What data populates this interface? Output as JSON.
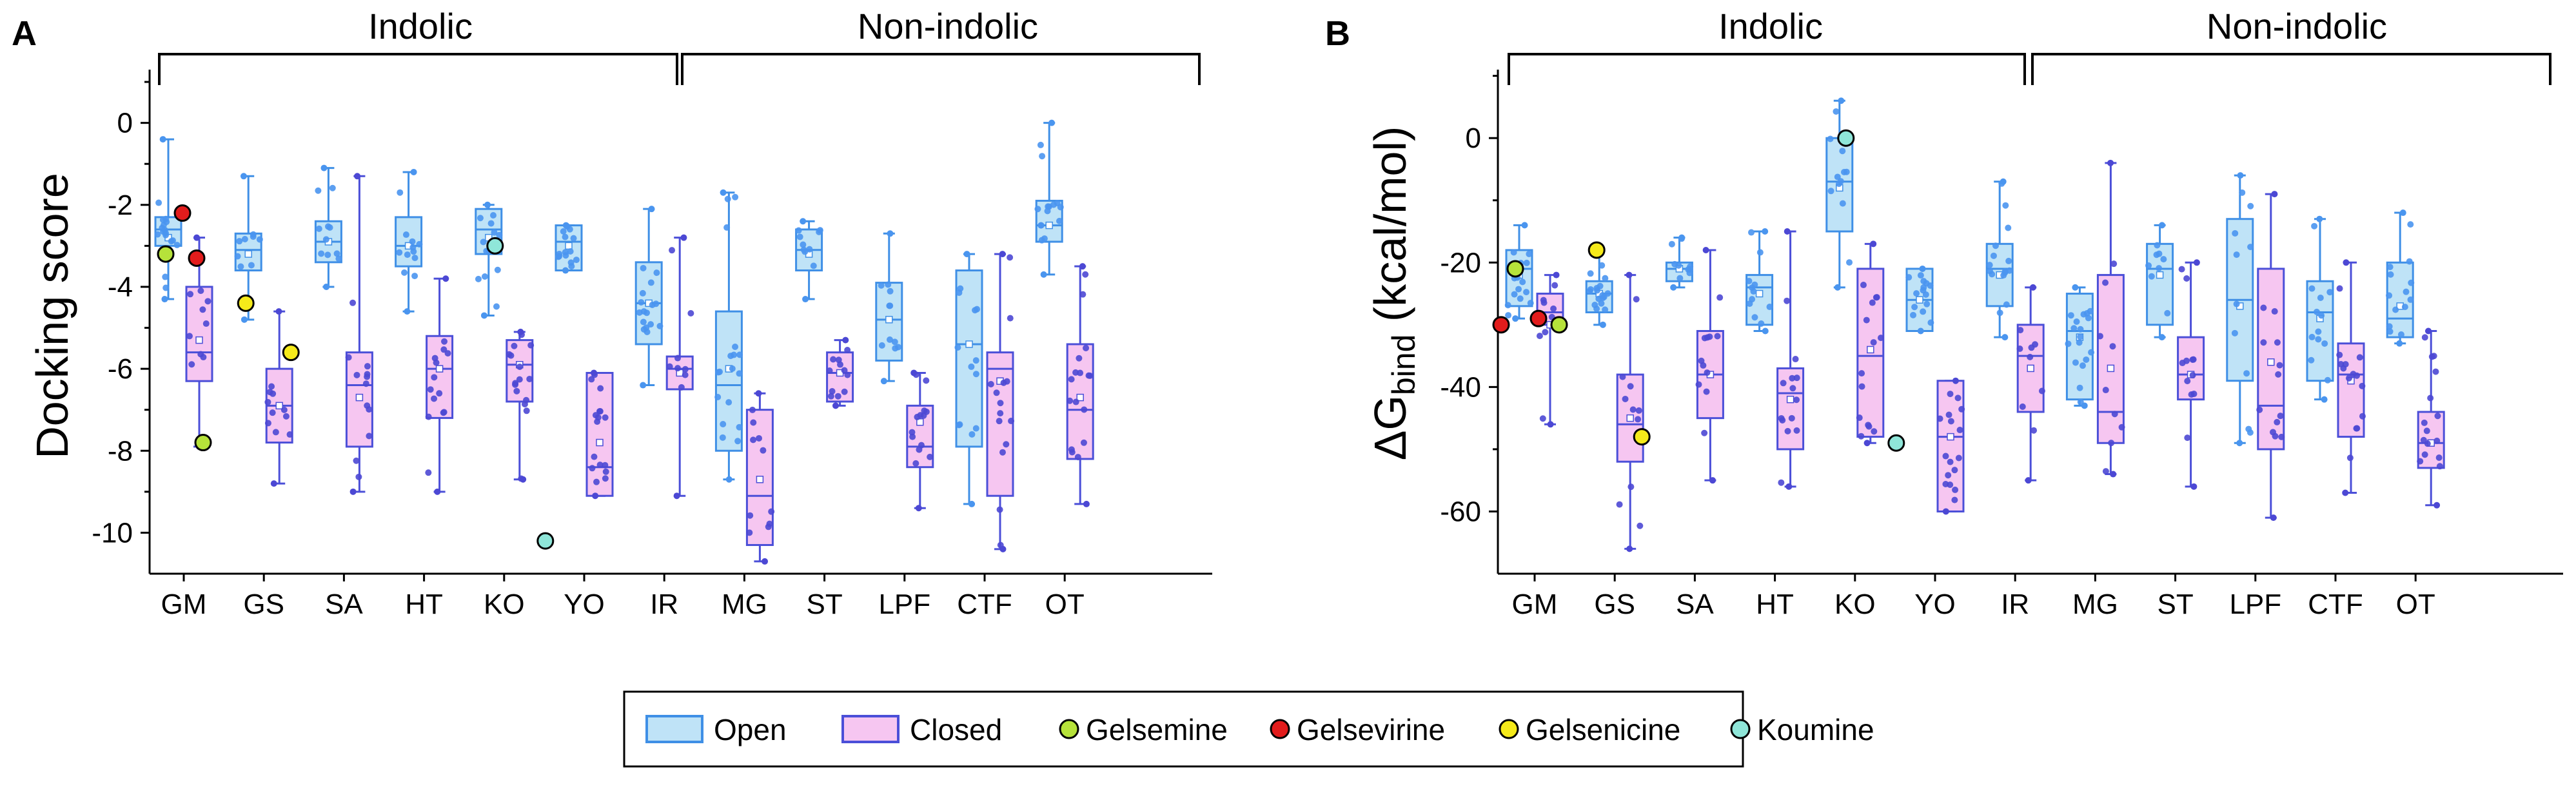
{
  "panels": [
    {
      "letter": "A",
      "ylabel": "Docking score",
      "group_labels": [
        "Indolic",
        "Non-indolic"
      ],
      "chart_data": {
        "type": "box",
        "categories": [
          "GM",
          "GS",
          "SA",
          "HT",
          "KO",
          "YO",
          "IR",
          "MG",
          "ST",
          "LPF",
          "CTF",
          "OT"
        ],
        "ylim": [
          -11,
          1.3
        ],
        "yticks": [
          0,
          -2,
          -4,
          -6,
          -8,
          -10
        ],
        "ytick_labels": [
          "0",
          "-2",
          "-4",
          "-6",
          "-8",
          "-10"
        ],
        "series": [
          {
            "name": "Open",
            "boxes": [
              {
                "min": -4.3,
                "q1": -3.0,
                "median": -2.6,
                "q3": -2.3,
                "max": -0.4,
                "mean": -2.8
              },
              {
                "min": -4.8,
                "q1": -3.6,
                "median": -3.1,
                "q3": -2.7,
                "max": -1.3,
                "mean": -3.2
              },
              {
                "min": -4.0,
                "q1": -3.4,
                "median": -2.9,
                "q3": -2.4,
                "max": -1.1,
                "mean": -2.9
              },
              {
                "min": -4.6,
                "q1": -3.5,
                "median": -3.0,
                "q3": -2.3,
                "max": -1.2,
                "mean": -3.0
              },
              {
                "min": -4.7,
                "q1": -3.2,
                "median": -2.6,
                "q3": -2.1,
                "max": -2.0,
                "mean": -2.8
              },
              {
                "min": -3.6,
                "q1": -3.6,
                "median": -2.9,
                "q3": -2.5,
                "max": -2.5,
                "mean": -3.0
              },
              {
                "min": -6.4,
                "q1": -5.4,
                "median": -4.4,
                "q3": -3.4,
                "max": -2.1,
                "mean": -4.4
              },
              {
                "min": -8.7,
                "q1": -8.0,
                "median": -6.4,
                "q3": -4.6,
                "max": -1.7,
                "mean": -6.0
              },
              {
                "min": -4.3,
                "q1": -3.6,
                "median": -3.1,
                "q3": -2.6,
                "max": -2.4,
                "mean": -3.2
              },
              {
                "min": -6.3,
                "q1": -5.8,
                "median": -4.8,
                "q3": -3.9,
                "max": -2.7,
                "mean": -4.8
              },
              {
                "min": -9.3,
                "q1": -7.9,
                "median": -5.4,
                "q3": -3.6,
                "max": -3.2,
                "mean": -5.4
              },
              {
                "min": -3.7,
                "q1": -2.9,
                "median": -2.5,
                "q3": -1.9,
                "max": 0.0,
                "mean": -2.5
              }
            ]
          },
          {
            "name": "Closed",
            "boxes": [
              {
                "min": -7.9,
                "q1": -6.3,
                "median": -5.6,
                "q3": -4.0,
                "max": -2.8,
                "mean": -5.3
              },
              {
                "min": -8.8,
                "q1": -7.8,
                "median": -6.9,
                "q3": -6.0,
                "max": -4.6,
                "mean": -6.9
              },
              {
                "min": -9.0,
                "q1": -7.9,
                "median": -6.4,
                "q3": -5.6,
                "max": -1.3,
                "mean": -6.7
              },
              {
                "min": -9.0,
                "q1": -7.2,
                "median": -6.0,
                "q3": -5.2,
                "max": -3.8,
                "mean": -6.0
              },
              {
                "min": -8.7,
                "q1": -6.8,
                "median": -5.9,
                "q3": -5.3,
                "max": -5.1,
                "mean": -5.9
              },
              {
                "min": -9.1,
                "q1": -9.1,
                "median": -8.4,
                "q3": -6.1,
                "max": -6.1,
                "mean": -7.8
              },
              {
                "min": -9.1,
                "q1": -6.5,
                "median": -6.0,
                "q3": -5.7,
                "max": -2.8,
                "mean": -6.1
              },
              {
                "min": -10.7,
                "q1": -10.3,
                "median": -9.1,
                "q3": -7.0,
                "max": -6.6,
                "mean": -8.7
              },
              {
                "min": -6.9,
                "q1": -6.8,
                "median": -6.1,
                "q3": -5.6,
                "max": -5.3,
                "mean": -6.1
              },
              {
                "min": -9.4,
                "q1": -8.4,
                "median": -7.9,
                "q3": -6.9,
                "max": -6.1,
                "mean": -7.3
              },
              {
                "min": -10.4,
                "q1": -9.1,
                "median": -6.0,
                "q3": -5.6,
                "max": -3.2,
                "mean": -6.3
              },
              {
                "min": -9.3,
                "q1": -8.2,
                "median": -7.0,
                "q3": -5.4,
                "max": -3.5,
                "mean": -6.7
              }
            ]
          }
        ],
        "highlights": [
          {
            "name": "Gelsevirine",
            "category": "GM",
            "series": "Open",
            "value": -2.2
          },
          {
            "name": "Gelsemine",
            "category": "GM",
            "series": "Open",
            "value": -3.2
          },
          {
            "name": "Gelsevirine",
            "category": "GM",
            "series": "Closed",
            "value": -3.3
          },
          {
            "name": "Gelsemine",
            "category": "GM",
            "series": "Closed",
            "value": -7.8
          },
          {
            "name": "Gelsenicine",
            "category": "GS",
            "series": "Open",
            "value": -4.4
          },
          {
            "name": "Gelsenicine",
            "category": "GS",
            "series": "Closed",
            "value": -5.6
          },
          {
            "name": "Koumine",
            "category": "KO",
            "series": "Open",
            "value": -3.0
          },
          {
            "name": "Koumine",
            "category": "KO",
            "series": "Closed",
            "value": -10.2
          }
        ]
      }
    },
    {
      "letter": "B",
      "ylabel_main": "ΔG",
      "ylabel_sub": "bind",
      "ylabel_unit": " (kcal/mol)",
      "group_labels": [
        "Indolic",
        "Non-indolic"
      ],
      "chart_data": {
        "type": "box",
        "categories": [
          "GM",
          "GS",
          "SA",
          "HT",
          "KO",
          "YO",
          "IR",
          "MG",
          "ST",
          "LPF",
          "CTF",
          "OT"
        ],
        "ylim": [
          -70,
          11
        ],
        "yticks": [
          0,
          -20,
          -40,
          -60
        ],
        "ytick_labels": [
          "0",
          "-20",
          "-40",
          "-60"
        ],
        "series": [
          {
            "name": "Open",
            "boxes": [
              {
                "min": -29,
                "q1": -27,
                "median": -21,
                "q3": -18,
                "max": -14,
                "mean": -22
              },
              {
                "min": -30,
                "q1": -28,
                "median": -25,
                "q3": -23,
                "max": -18,
                "mean": -25
              },
              {
                "min": -24,
                "q1": -23,
                "median": -21,
                "q3": -20,
                "max": -16,
                "mean": -21
              },
              {
                "min": -31,
                "q1": -30,
                "median": -24,
                "q3": -22,
                "max": -15,
                "mean": -25
              },
              {
                "min": -24,
                "q1": -15,
                "median": -7,
                "q3": 0,
                "max": 6,
                "mean": -8
              },
              {
                "min": -31,
                "q1": -31,
                "median": -26,
                "q3": -21,
                "max": -21,
                "mean": -26
              },
              {
                "min": -32,
                "q1": -27,
                "median": -21,
                "q3": -17,
                "max": -7,
                "mean": -22
              },
              {
                "min": -43,
                "q1": -42,
                "median": -31,
                "q3": -25,
                "max": -24,
                "mean": -32
              },
              {
                "min": -32,
                "q1": -30,
                "median": -21,
                "q3": -17,
                "max": -14,
                "mean": -22
              },
              {
                "min": -49,
                "q1": -39,
                "median": -26,
                "q3": -13,
                "max": -6,
                "mean": -27
              },
              {
                "min": -42,
                "q1": -39,
                "median": -28,
                "q3": -23,
                "max": -13,
                "mean": -29
              },
              {
                "min": -33,
                "q1": -32,
                "median": -29,
                "q3": -20,
                "max": -12,
                "mean": -27
              }
            ]
          },
          {
            "name": "Closed",
            "boxes": [
              {
                "min": -46,
                "q1": -30,
                "median": -28,
                "q3": -25,
                "max": -22,
                "mean": -30
              },
              {
                "min": -66,
                "q1": -52,
                "median": -46,
                "q3": -38,
                "max": -22,
                "mean": -45
              },
              {
                "min": -55,
                "q1": -45,
                "median": -38,
                "q3": -31,
                "max": -18,
                "mean": -38
              },
              {
                "min": -56,
                "q1": -50,
                "median": -41,
                "q3": -37,
                "max": -15,
                "mean": -42
              },
              {
                "min": -49,
                "q1": -48,
                "median": -35,
                "q3": -21,
                "max": -17,
                "mean": -34
              },
              {
                "min": -60,
                "q1": -60,
                "median": -48,
                "q3": -39,
                "max": -39,
                "mean": -48
              },
              {
                "min": -55,
                "q1": -44,
                "median": -35,
                "q3": -30,
                "max": -24,
                "mean": -37
              },
              {
                "min": -54,
                "q1": -49,
                "median": -44,
                "q3": -22,
                "max": -4,
                "mean": -37
              },
              {
                "min": -56,
                "q1": -42,
                "median": -38,
                "q3": -32,
                "max": -20,
                "mean": -38
              },
              {
                "min": -61,
                "q1": -50,
                "median": -43,
                "q3": -21,
                "max": -9,
                "mean": -36
              },
              {
                "min": -57,
                "q1": -48,
                "median": -38,
                "q3": -33,
                "max": -20,
                "mean": -39
              },
              {
                "min": -59,
                "q1": -53,
                "median": -49,
                "q3": -44,
                "max": -31,
                "mean": -49
              }
            ]
          }
        ],
        "highlights": [
          {
            "name": "Gelsemine",
            "category": "GM",
            "series": "Open",
            "value": -21
          },
          {
            "name": "Gelsevirine",
            "category": "GM",
            "series": "Open",
            "value": -30
          },
          {
            "name": "Gelsevirine",
            "category": "GM",
            "series": "Closed",
            "value": -29
          },
          {
            "name": "Gelsemine",
            "category": "GM",
            "series": "Closed",
            "value": -30
          },
          {
            "name": "Gelsenicine",
            "category": "GS",
            "series": "Open",
            "value": -18
          },
          {
            "name": "Gelsenicine",
            "category": "GS",
            "series": "Closed",
            "value": -48
          },
          {
            "name": "Koumine",
            "category": "KO",
            "series": "Open",
            "value": 0
          },
          {
            "name": "Koumine",
            "category": "KO",
            "series": "Closed",
            "value": -49
          }
        ]
      }
    }
  ],
  "legend": {
    "items": [
      {
        "label": "Open",
        "kind": "box",
        "fill": "#bfe3f7",
        "stroke": "#3f8fe6"
      },
      {
        "label": "Closed",
        "kind": "box",
        "fill": "#f6c6f1",
        "stroke": "#4b4fd8"
      },
      {
        "label": "Gelsemine",
        "kind": "dot",
        "fill": "#b6e23a"
      },
      {
        "label": "Gelsevirine",
        "kind": "dot",
        "fill": "#e21c1c"
      },
      {
        "label": "Gelsenicine",
        "kind": "dot",
        "fill": "#f5ea1a"
      },
      {
        "label": "Koumine",
        "kind": "dot",
        "fill": "#8fe6d9"
      }
    ]
  },
  "colors": {
    "open_fill": "#bfe3f7",
    "open_stroke": "#3f8fe6",
    "open_dot": "#4a95ef",
    "closed_fill": "#f6c6f1",
    "closed_stroke": "#4b4fd8",
    "closed_dot": "#4c48d4",
    "Gelsemine": "#b6e23a",
    "Gelsevirine": "#e21c1c",
    "Gelsenicine": "#f5ea1a",
    "Koumine": "#8fe6d9"
  }
}
